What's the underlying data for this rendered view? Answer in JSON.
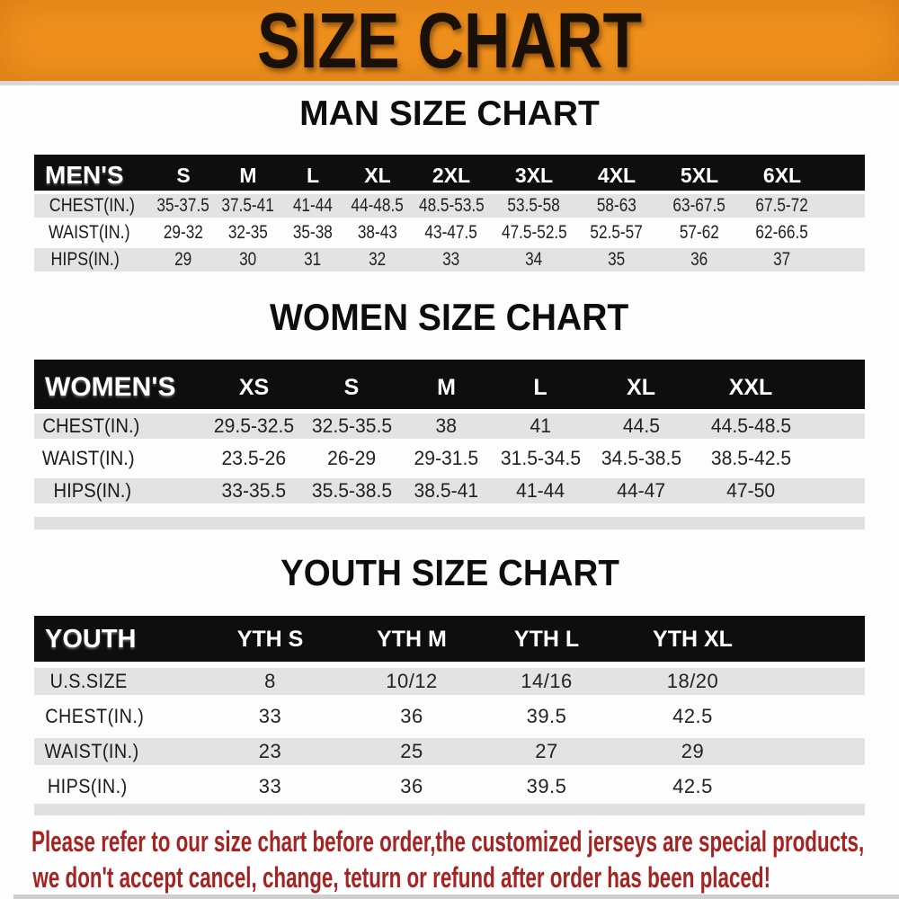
{
  "banner": {
    "title": "SIZE CHART",
    "bg_color": "#EF901D",
    "text_color": "#191008"
  },
  "sections": [
    {
      "heading": "MAN SIZE CHART",
      "table": {
        "header_label": "MEN'S",
        "header_bg": "#0e0e0e",
        "stripe_color": "#E3E3E4",
        "columns": [
          "S",
          "M",
          "L",
          "XL",
          "2XL",
          "3XL",
          "4XL",
          "5XL",
          "6XL"
        ],
        "rows": [
          {
            "label": "CHEST(IN.)",
            "values": [
              "35-37.5",
              "37.5-41",
              "41-44",
              "44-48.5",
              "48.5-53.5",
              "53.5-58",
              "58-63",
              "63-67.5",
              "67.5-72"
            ]
          },
          {
            "label": "WAIST(IN.)",
            "values": [
              "29-32",
              "32-35",
              "35-38",
              "38-43",
              "43-47.5",
              "47.5-52.5",
              "52.5-57",
              "57-62",
              "62-66.5"
            ]
          },
          {
            "label": "HIPS(IN.)",
            "values": [
              "29",
              "30",
              "31",
              "32",
              "33",
              "34",
              "35",
              "36",
              "37"
            ]
          }
        ]
      }
    },
    {
      "heading": "WOMEN SIZE CHART",
      "table": {
        "header_label": "WOMEN'S",
        "header_bg": "#0e0e0e",
        "stripe_color": "#E3E3E4",
        "columns": [
          "XS",
          "S",
          "M",
          "L",
          "XL",
          "XXL"
        ],
        "rows": [
          {
            "label": "CHEST(IN.)",
            "values": [
              "29.5-32.5",
              "32.5-35.5",
              "38",
              "41",
              "44.5",
              "44.5-48.5"
            ]
          },
          {
            "label": "WAIST(IN.)",
            "values": [
              "23.5-26",
              "26-29",
              "29-31.5",
              "31.5-34.5",
              "34.5-38.5",
              "38.5-42.5"
            ]
          },
          {
            "label": "HIPS(IN.)",
            "values": [
              "33-35.5",
              "35.5-38.5",
              "38.5-41",
              "41-44",
              "44-47",
              "47-50"
            ]
          }
        ]
      }
    },
    {
      "heading": "YOUTH SIZE CHART",
      "table": {
        "header_label": "YOUTH",
        "header_bg": "#0e0e0e",
        "stripe_color": "#E3E3E4",
        "columns": [
          "YTH S",
          "YTH M",
          "YTH L",
          "YTH XL"
        ],
        "rows": [
          {
            "label": "U.S.SIZE",
            "values": [
              "8",
              "10/12",
              "14/16",
              "18/20"
            ]
          },
          {
            "label": "CHEST(IN.)",
            "values": [
              "33",
              "36",
              "39.5",
              "42.5"
            ]
          },
          {
            "label": "WAIST(IN.)",
            "values": [
              "23",
              "25",
              "27",
              "29"
            ]
          },
          {
            "label": "HIPS(IN.)",
            "values": [
              "33",
              "36",
              "39.5",
              "42.5"
            ]
          }
        ]
      }
    }
  ],
  "footer": {
    "color": "#A32422",
    "lines": [
      "Please refer to our size chart before order,the customized jerseys are special products,",
      "we don't accept cancel, change, teturn or refund after order has been placed!"
    ]
  }
}
